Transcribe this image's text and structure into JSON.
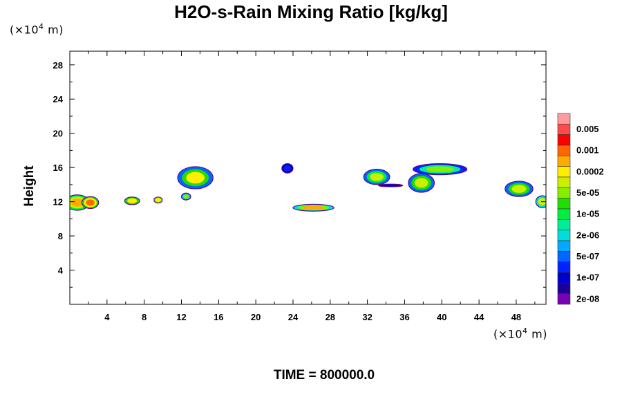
{
  "chart_data": {
    "type": "heatmap",
    "title": "H2O-s-Rain Mixing Ratio [kg/kg]",
    "ylabel": "Height",
    "xlabel": "",
    "x_unit_label": "(×10⁴ m)",
    "y_unit_label": "(×10⁴ m)",
    "x_unit_text": {
      "prefix": "(×10",
      "exp": "4",
      "suffix": " m)"
    },
    "y_unit_text": {
      "prefix": "(×10",
      "exp": "4",
      "suffix": " m)"
    },
    "xlim": [
      0,
      51.2
    ],
    "ylim": [
      0,
      29.6
    ],
    "x_ticks": [
      "4",
      "8",
      "12",
      "16",
      "20",
      "24",
      "28",
      "32",
      "36",
      "40",
      "44",
      "48"
    ],
    "y_ticks": [
      "4",
      "8",
      "12",
      "16",
      "20",
      "24",
      "28"
    ],
    "colorbar": {
      "labels": [
        "0.005",
        "0.001",
        "0.0002",
        "5e-05",
        "1e-05",
        "2e-06",
        "5e-07",
        "1e-07",
        "2e-08"
      ],
      "colors": [
        "#ff9aa0",
        "#ff4a4a",
        "#ff0000",
        "#ff6600",
        "#ffaa00",
        "#ffee00",
        "#ccee00",
        "#88ee00",
        "#22dd00",
        "#00ee44",
        "#00ee99",
        "#00dddd",
        "#00aaff",
        "#0066ff",
        "#0022ff",
        "#0000cc",
        "#1a0099",
        "#7a00b5"
      ]
    },
    "regions": [
      {
        "cx": 0.8,
        "cy": 11.9,
        "rx": 1.3,
        "ry": 0.9,
        "levels": [
          8,
          11,
          13
        ]
      },
      {
        "cx": 2.2,
        "cy": 11.9,
        "rx": 0.9,
        "ry": 0.7,
        "levels": [
          9,
          12,
          14
        ]
      },
      {
        "cx": 6.7,
        "cy": 12.1,
        "rx": 0.8,
        "ry": 0.45,
        "levels": [
          9,
          12
        ]
      },
      {
        "cx": 9.5,
        "cy": 12.2,
        "rx": 0.45,
        "ry": 0.35,
        "levels": [
          10,
          12
        ]
      },
      {
        "cx": 13.5,
        "cy": 14.8,
        "rx": 1.9,
        "ry": 1.3,
        "levels": [
          4,
          9,
          12
        ]
      },
      {
        "cx": 12.5,
        "cy": 12.6,
        "rx": 0.5,
        "ry": 0.4,
        "levels": [
          5,
          10
        ]
      },
      {
        "cx": 23.4,
        "cy": 15.9,
        "rx": 0.6,
        "ry": 0.55,
        "levels": [
          2,
          3
        ]
      },
      {
        "cx": 26.2,
        "cy": 11.3,
        "rx": 2.2,
        "ry": 0.4,
        "levels": [
          6,
          10,
          13
        ]
      },
      {
        "cx": 33.0,
        "cy": 14.9,
        "rx": 1.4,
        "ry": 0.9,
        "levels": [
          4,
          8,
          11
        ]
      },
      {
        "cx": 34.5,
        "cy": 13.9,
        "rx": 1.3,
        "ry": 0.15,
        "levels": [
          1,
          2
        ]
      },
      {
        "cx": 37.8,
        "cy": 14.2,
        "rx": 1.4,
        "ry": 1.1,
        "levels": [
          4,
          9,
          11
        ]
      },
      {
        "cx": 39.8,
        "cy": 15.8,
        "rx": 2.9,
        "ry": 0.65,
        "levels": [
          3,
          7,
          10
        ]
      },
      {
        "cx": 48.3,
        "cy": 13.5,
        "rx": 1.5,
        "ry": 0.9,
        "levels": [
          4,
          9,
          11
        ]
      },
      {
        "cx": 50.8,
        "cy": 12.0,
        "rx": 0.7,
        "ry": 0.7,
        "levels": [
          6,
          11
        ]
      }
    ]
  },
  "footer": {
    "time_label": "TIME = 800000.0"
  }
}
